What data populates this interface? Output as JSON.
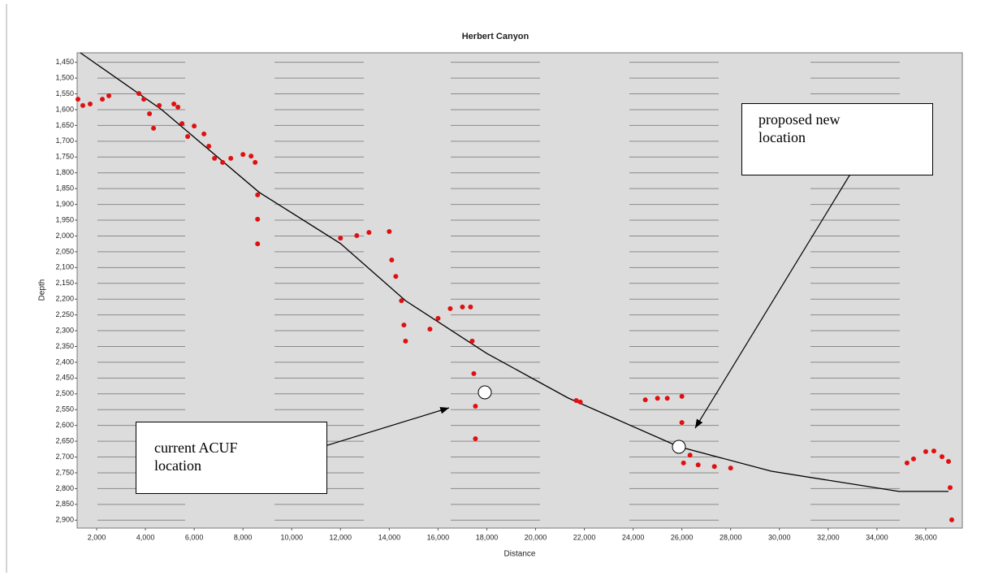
{
  "chart_data": {
    "type": "scatter",
    "title": "Herbert Canyon",
    "x_label": "Distance",
    "y_label": "Depth",
    "xlim": [
      1200,
      37500
    ],
    "xticks": [
      {
        "value": 2000,
        "label": "2,000"
      },
      {
        "value": 4000,
        "label": "4,000"
      },
      {
        "value": 6000,
        "label": "6,000"
      },
      {
        "value": 8000,
        "label": "8,000"
      },
      {
        "value": 10000,
        "label": "10,000"
      },
      {
        "value": 12000,
        "label": "12,000"
      },
      {
        "value": 14000,
        "label": "14,000"
      },
      {
        "value": 16000,
        "label": "16,000"
      },
      {
        "value": 18000,
        "label": "18,000"
      },
      {
        "value": 20000,
        "label": "20,000"
      },
      {
        "value": 22000,
        "label": "22,000"
      },
      {
        "value": 24000,
        "label": "24,000"
      },
      {
        "value": 26000,
        "label": "26,000"
      },
      {
        "value": 28000,
        "label": "28,000"
      },
      {
        "value": 30000,
        "label": "30,000"
      },
      {
        "value": 32000,
        "label": "32,000"
      },
      {
        "value": 34000,
        "label": "34,000"
      },
      {
        "value": 36000,
        "label": "36,000"
      }
    ],
    "ylim": [
      1420,
      2925
    ],
    "y_inverted": true,
    "grid": true,
    "yticks": [
      {
        "value": 1450,
        "label": "1,450"
      },
      {
        "value": 1500,
        "label": "1,500"
      },
      {
        "value": 1550,
        "label": "1,550"
      },
      {
        "value": 1600,
        "label": "1,600"
      },
      {
        "value": 1650,
        "label": "1,650"
      },
      {
        "value": 1700,
        "label": "1,700"
      },
      {
        "value": 1750,
        "label": "1,750"
      },
      {
        "value": 1800,
        "label": "1,800"
      },
      {
        "value": 1850,
        "label": "1,850"
      },
      {
        "value": 1900,
        "label": "1,900"
      },
      {
        "value": 1950,
        "label": "1,950"
      },
      {
        "value": 2000,
        "label": "2,000"
      },
      {
        "value": 2050,
        "label": "2,050"
      },
      {
        "value": 2100,
        "label": "2,100"
      },
      {
        "value": 2150,
        "label": "2,150"
      },
      {
        "value": 2200,
        "label": "2,200"
      },
      {
        "value": 2250,
        "label": "2,250"
      },
      {
        "value": 2300,
        "label": "2,300"
      },
      {
        "value": 2350,
        "label": "2,350"
      },
      {
        "value": 2400,
        "label": "2,400"
      },
      {
        "value": 2450,
        "label": "2,450"
      },
      {
        "value": 2500,
        "label": "2,500"
      },
      {
        "value": 2550,
        "label": "2,550"
      },
      {
        "value": 2600,
        "label": "2,600"
      },
      {
        "value": 2650,
        "label": "2,650"
      },
      {
        "value": 2700,
        "label": "2,700"
      },
      {
        "value": 2750,
        "label": "2,750"
      },
      {
        "value": 2800,
        "label": "2,800"
      },
      {
        "value": 2850,
        "label": "2,850"
      },
      {
        "value": 2900,
        "label": "2,900"
      }
    ],
    "line": {
      "color": "#000000",
      "x": [
        1333,
        4667,
        8667,
        12000,
        14667,
        18000,
        21333,
        25867,
        29667,
        34900,
        36933
      ],
      "values": [
        1420,
        1600,
        1862,
        2024,
        2205,
        2372,
        2513,
        2667,
        2745,
        2809,
        2809
      ]
    },
    "points": {
      "color": "#e01010",
      "x": [
        1233,
        1433,
        1733,
        2233,
        2500,
        3733,
        3933,
        4167,
        4333,
        4567,
        5167,
        5333,
        5500,
        5733,
        6000,
        6400,
        6600,
        6833,
        7167,
        7500,
        8000,
        8333,
        8500,
        8600,
        8600,
        8600,
        12000,
        12667,
        13167,
        14000,
        14100,
        14267,
        14500,
        14600,
        14667,
        15667,
        16000,
        16500,
        17000,
        17333,
        17400,
        17467,
        17533,
        17533,
        21667,
        21833,
        24500,
        25000,
        25400,
        26000,
        26000,
        26000,
        26067,
        26333,
        26667,
        27333,
        28000,
        35233,
        35500,
        36000,
        36333,
        36667,
        36933,
        37000,
        37067
      ],
      "values": [
        1567,
        1587,
        1582,
        1567,
        1556,
        1549,
        1567,
        1613,
        1659,
        1587,
        1582,
        1592,
        1644,
        1685,
        1652,
        1677,
        1716,
        1754,
        1767,
        1754,
        1742,
        1747,
        1767,
        1870,
        1947,
        2025,
        2007,
        1999,
        1989,
        1986,
        2076,
        2128,
        2205,
        2282,
        2333,
        2295,
        2261,
        2230,
        2225,
        2225,
        2333,
        2436,
        2539,
        2642,
        2521,
        2526,
        2519,
        2514,
        2514,
        2508,
        2591,
        2668,
        2719,
        2694,
        2725,
        2730,
        2735,
        2719,
        2706,
        2683,
        2681,
        2699,
        2714,
        2797,
        2899
      ]
    }
  },
  "annotations": {
    "proposed": "proposed new location",
    "current": "current ACUF location"
  }
}
